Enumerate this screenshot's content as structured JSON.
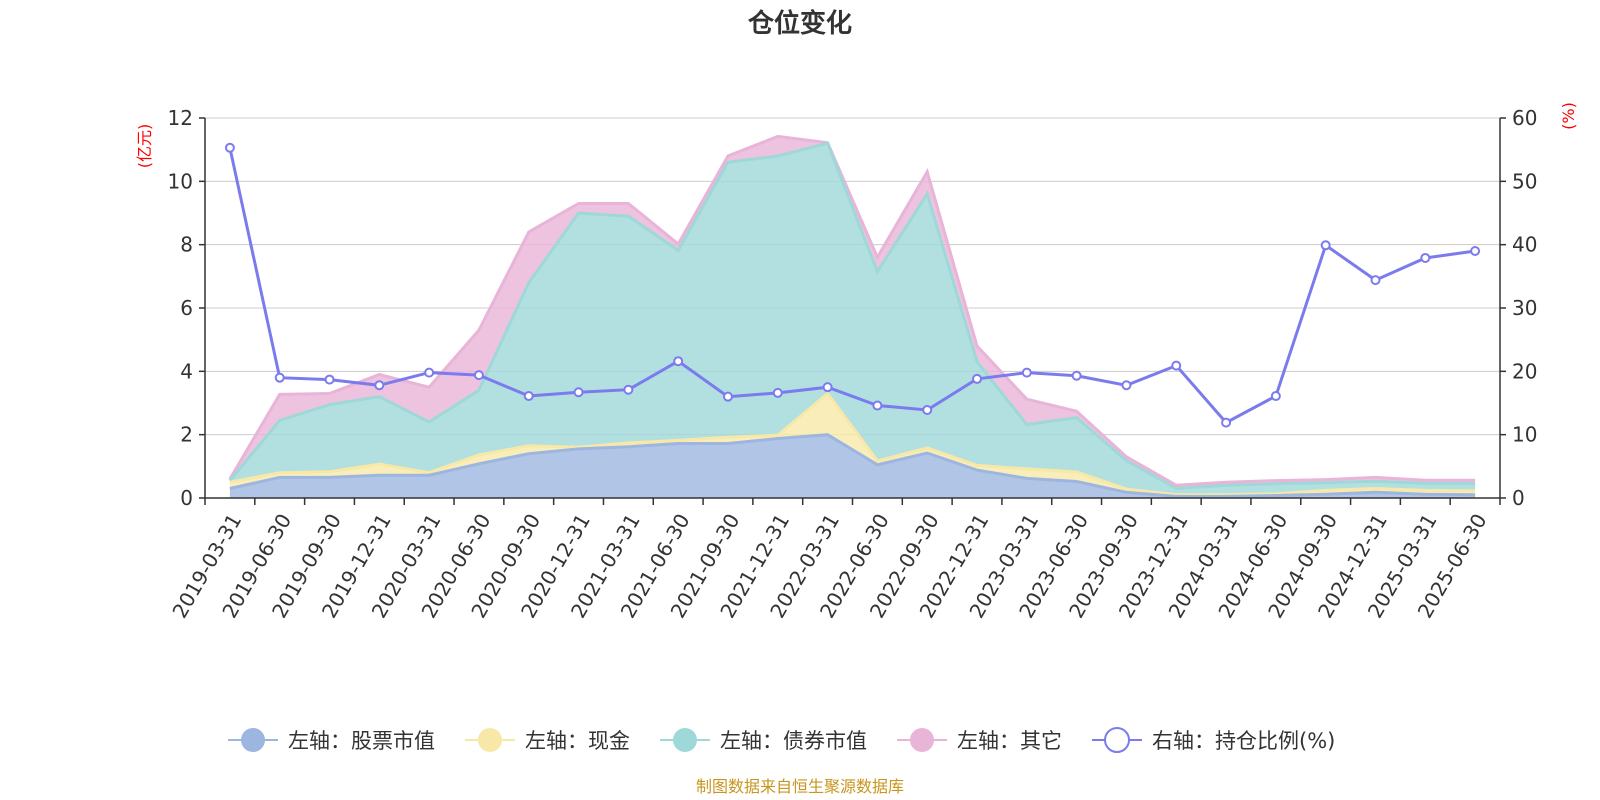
{
  "chart_data": {
    "type": "area",
    "title": "仓位变化",
    "left_axis_unit": "(亿元)",
    "right_axis_unit": "(%)",
    "left_ylim": [
      0,
      12
    ],
    "left_ticks": [
      0,
      2,
      4,
      6,
      8,
      10,
      12
    ],
    "right_ylim": [
      0,
      60
    ],
    "right_ticks": [
      0,
      10,
      20,
      30,
      40,
      50,
      60
    ],
    "grid": true,
    "legend_position": "bottom",
    "source_note": "制图数据来自恒生聚源数据库",
    "categories": [
      "2019-03-31",
      "2019-06-30",
      "2019-09-30",
      "2019-12-31",
      "2020-03-31",
      "2020-06-30",
      "2020-09-30",
      "2020-12-31",
      "2021-03-31",
      "2021-06-30",
      "2021-09-30",
      "2021-12-31",
      "2022-03-31",
      "2022-06-30",
      "2022-09-30",
      "2022-12-31",
      "2023-03-31",
      "2023-06-30",
      "2023-09-30",
      "2023-12-31",
      "2024-03-31",
      "2024-06-30",
      "2024-09-30",
      "2024-12-31",
      "2025-03-31",
      "2025-06-30"
    ],
    "series": [
      {
        "name": "左轴：股票市值",
        "axis": "left",
        "stacked": true,
        "color": "#9db6e0",
        "values": [
          0.3,
          0.65,
          0.65,
          0.72,
          0.72,
          1.08,
          1.4,
          1.55,
          1.62,
          1.72,
          1.72,
          1.88,
          2.0,
          1.05,
          1.42,
          0.88,
          0.62,
          0.52,
          0.18,
          0.05,
          0.05,
          0.08,
          0.12,
          0.18,
          0.12,
          0.1
        ]
      },
      {
        "name": "左轴：现金",
        "axis": "left",
        "stacked": true,
        "color": "#f8e8a8",
        "values": [
          0.2,
          0.15,
          0.18,
          0.35,
          0.08,
          0.28,
          0.25,
          0.05,
          0.12,
          0.1,
          0.2,
          0.1,
          1.3,
          0.12,
          0.16,
          0.15,
          0.3,
          0.3,
          0.1,
          0.05,
          0.05,
          0.05,
          0.12,
          0.12,
          0.12,
          0.12
        ]
      },
      {
        "name": "左轴：债券市值",
        "axis": "left",
        "stacked": true,
        "color": "#9fd8d8",
        "values": [
          0.05,
          1.65,
          2.12,
          2.13,
          1.6,
          2.04,
          5.15,
          7.4,
          7.16,
          6.0,
          8.68,
          8.82,
          7.9,
          5.98,
          8.02,
          3.27,
          1.4,
          1.72,
          0.9,
          0.2,
          0.3,
          0.32,
          0.24,
          0.23,
          0.22,
          0.24
        ]
      },
      {
        "name": "左轴：其它",
        "axis": "left",
        "stacked": true,
        "color": "#e8b4d8",
        "values": [
          0.05,
          0.82,
          0.35,
          0.7,
          1.1,
          1.9,
          1.6,
          0.3,
          0.4,
          0.2,
          0.2,
          0.62,
          0.02,
          0.45,
          0.7,
          0.5,
          0.8,
          0.2,
          0.12,
          0.1,
          0.1,
          0.1,
          0.1,
          0.12,
          0.1,
          0.1
        ]
      },
      {
        "name": "右轴：持仓比例(%)",
        "axis": "right",
        "stacked": false,
        "color": "#7b7bee",
        "values": [
          55.3,
          19.0,
          18.7,
          17.8,
          19.8,
          19.4,
          16.1,
          16.7,
          17.1,
          21.6,
          16.0,
          16.6,
          17.5,
          14.6,
          13.9,
          18.8,
          19.8,
          19.3,
          17.8,
          20.9,
          11.9,
          16.1,
          39.9,
          34.4,
          37.9,
          39.0
        ]
      }
    ]
  }
}
